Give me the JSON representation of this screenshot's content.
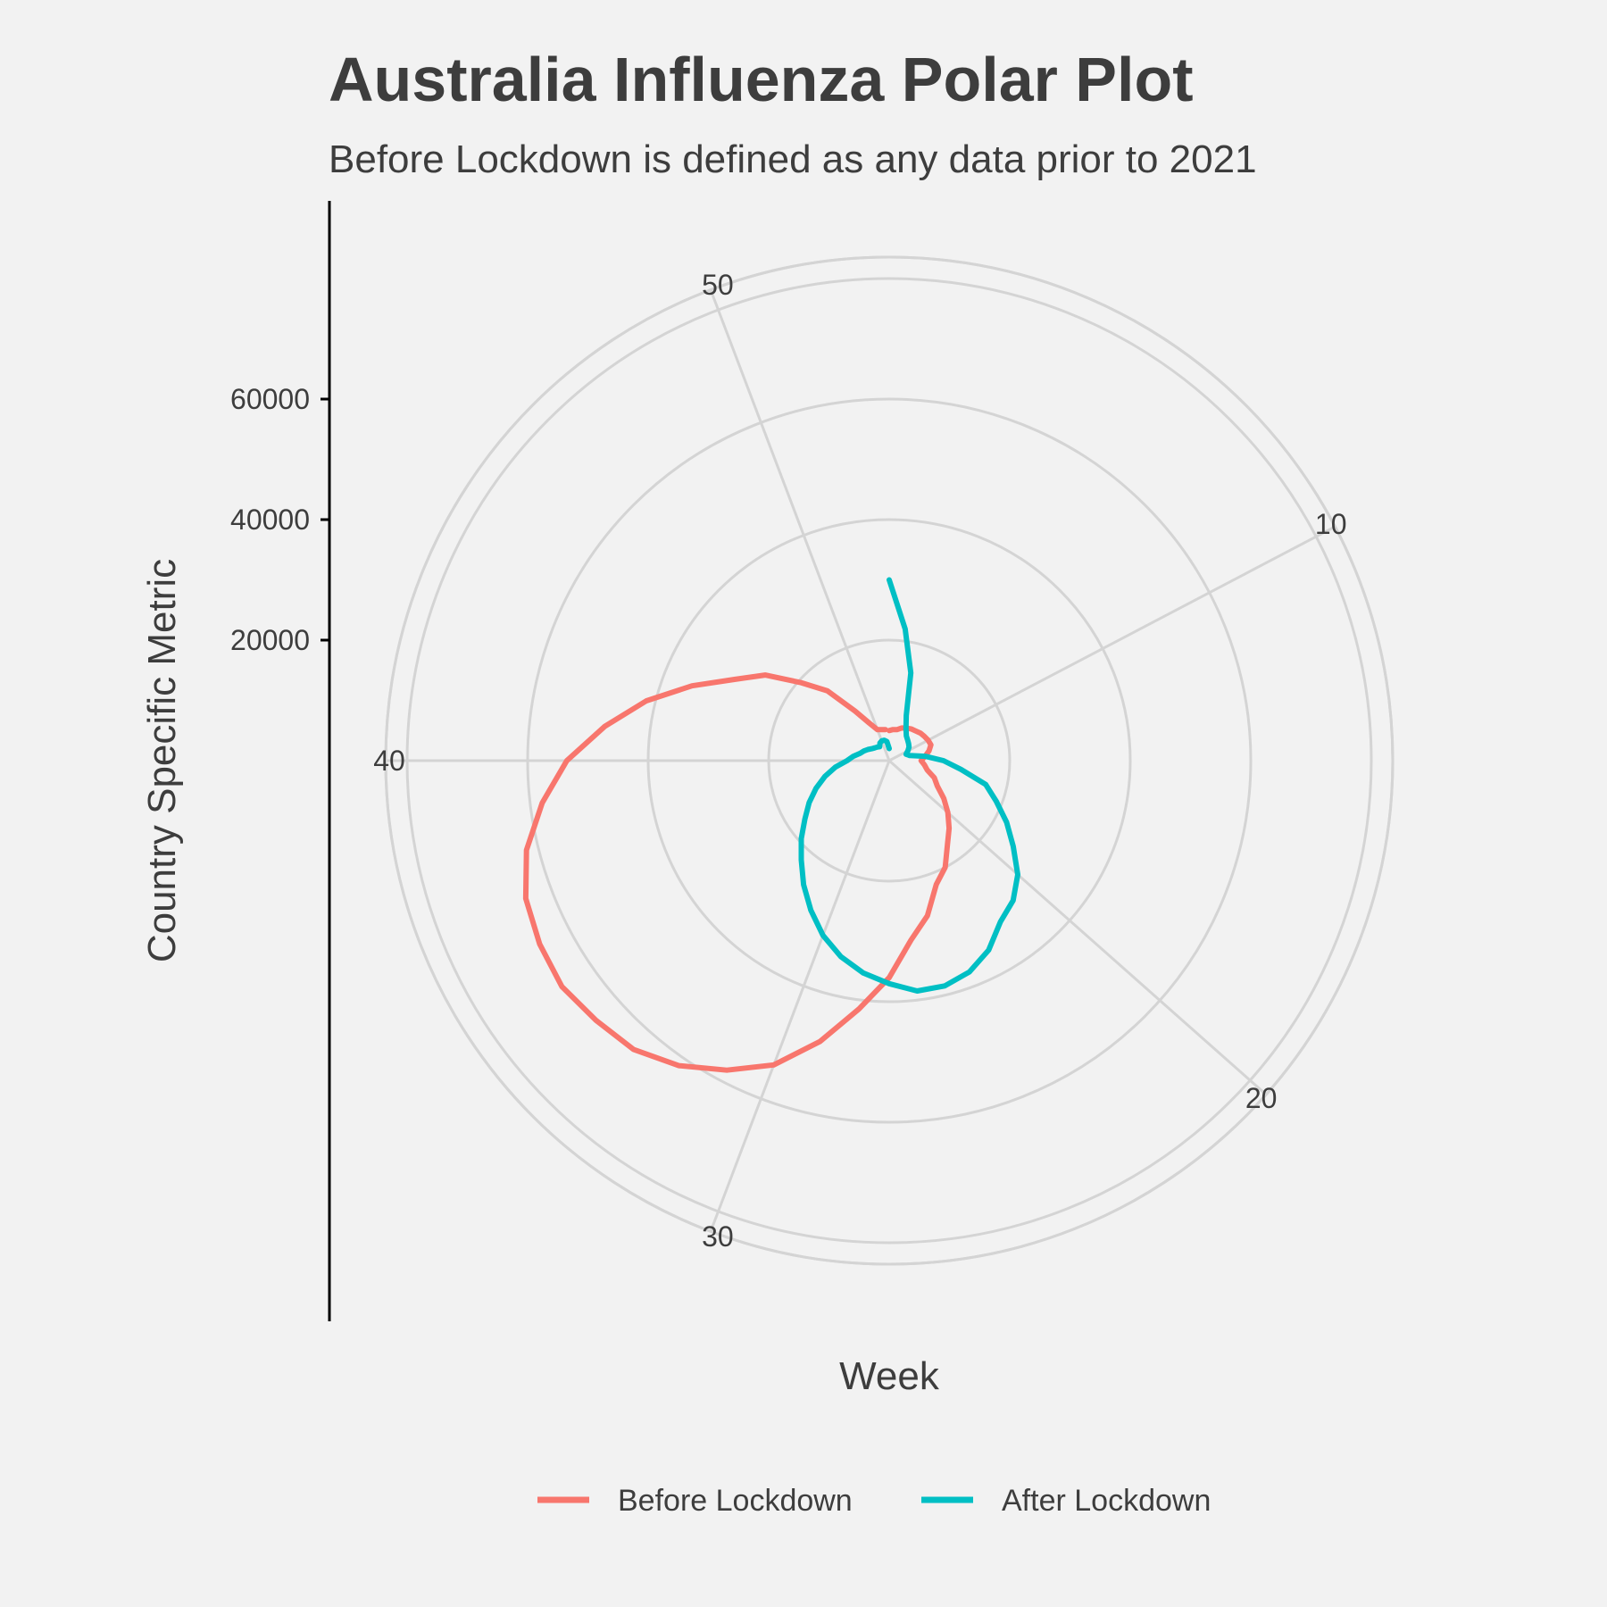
{
  "chart_data": {
    "type": "polar-line",
    "title": "Australia Influenza Polar Plot",
    "subtitle": "Before Lockdown is defined as any data prior to 2021",
    "xlabel": "Week",
    "ylabel": "Country Specific Metric",
    "theta_range": [
      1,
      53
    ],
    "r_range": [
      0,
      70000
    ],
    "theta_ticks": [
      "10",
      "20",
      "30",
      "40",
      "50"
    ],
    "theta_tick_values": [
      10,
      20,
      30,
      40,
      50
    ],
    "r_ticks": [
      "20000",
      "40000",
      "60000"
    ],
    "r_tick_values": [
      20000,
      40000,
      60000
    ],
    "r_gridlines": [
      20000,
      40000,
      60000,
      80000,
      100000
    ],
    "legend_position": "bottom",
    "series": [
      {
        "name": "Before Lockdown",
        "color": "#F8766D",
        "x": [
          1,
          2,
          3,
          4,
          5,
          6,
          7,
          8,
          9,
          10,
          11,
          12,
          13,
          14,
          15,
          16,
          17,
          18,
          19,
          20,
          21,
          22,
          23,
          24,
          25,
          26,
          27,
          28,
          29,
          30,
          31,
          32,
          33,
          34,
          35,
          36,
          37,
          38,
          39,
          40,
          41,
          42,
          43,
          44,
          45,
          46,
          47,
          48,
          49,
          50,
          51,
          52
        ],
        "y": [
          5000,
          5200,
          5300,
          5800,
          6100,
          6400,
          6600,
          6900,
          7100,
          7300,
          7400,
          6800,
          6000,
          5300,
          5900,
          6500,
          8000,
          9000,
          11000,
          13000,
          15000,
          17000,
          20000,
          22000,
          26500,
          30000,
          36000,
          41500,
          48000,
          54000,
          58000,
          61500,
          64000,
          65000,
          66000,
          65500,
          64500,
          62000,
          58000,
          53500,
          47500,
          41500,
          35000,
          29000,
          25000,
          19500,
          15500,
          10000,
          7000,
          5500,
          5300,
          5200
        ]
      },
      {
        "name": "After Lockdown",
        "color": "#00BFC4",
        "x": [
          1,
          2,
          3,
          4,
          5,
          6,
          7,
          8,
          9,
          10,
          11,
          12,
          13,
          14,
          15,
          16,
          17,
          18,
          19,
          20,
          21,
          22,
          23,
          24,
          25,
          26,
          27,
          28,
          29,
          30,
          31,
          32,
          33,
          34,
          35,
          36,
          37,
          38,
          39,
          40,
          41,
          42,
          43,
          44,
          45,
          46,
          47,
          48,
          49,
          50,
          51,
          52,
          53
        ],
        "y": [
          30000,
          22000,
          15000,
          8000,
          6000,
          5000,
          4600,
          4300,
          4000,
          3500,
          3000,
          3500,
          6000,
          9000,
          12000,
          16500,
          19000,
          22000,
          25000,
          28500,
          31000,
          32500,
          35500,
          37500,
          38500,
          38500,
          37000,
          35500,
          33500,
          31000,
          28000,
          25000,
          22000,
          19500,
          17000,
          15000,
          13000,
          11000,
          9000,
          7000,
          6000,
          5000,
          4500,
          4000,
          3500,
          3200,
          3000,
          2800,
          3300,
          3500,
          3500,
          3200,
          2000
        ]
      }
    ]
  }
}
